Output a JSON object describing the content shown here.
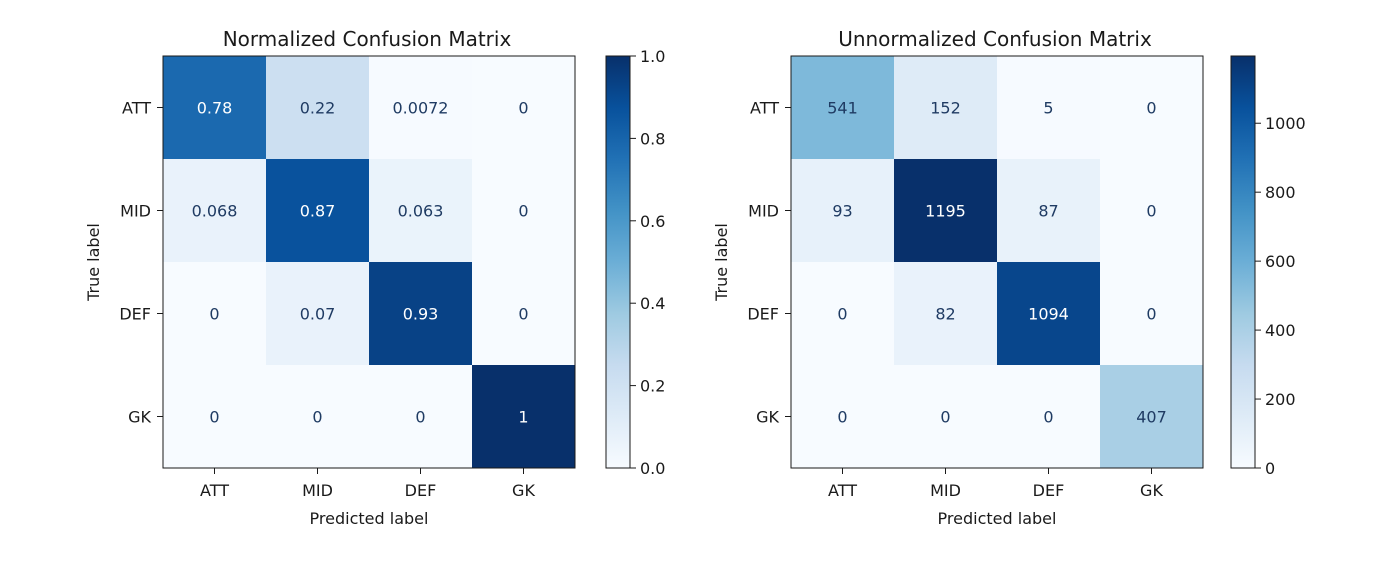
{
  "chart_data": [
    {
      "type": "heatmap",
      "title": "Normalized Confusion Matrix",
      "xlabel": "Predicted label",
      "ylabel": "True label",
      "x_categories": [
        "ATT",
        "MID",
        "DEF",
        "GK"
      ],
      "y_categories": [
        "ATT",
        "MID",
        "DEF",
        "GK"
      ],
      "values": [
        [
          0.78,
          0.22,
          0.0072,
          0
        ],
        [
          0.068,
          0.87,
          0.063,
          0
        ],
        [
          0,
          0.07,
          0.93,
          0
        ],
        [
          0,
          0,
          0,
          1
        ]
      ],
      "colormap": "Blues",
      "vmin": 0,
      "vmax": 1.0,
      "colorbar_ticks": [
        "0.0",
        "0.2",
        "0.4",
        "0.6",
        "0.8",
        "1.0"
      ]
    },
    {
      "type": "heatmap",
      "title": "Unnormalized Confusion Matrix",
      "xlabel": "Predicted label",
      "ylabel": "True label",
      "x_categories": [
        "ATT",
        "MID",
        "DEF",
        "GK"
      ],
      "y_categories": [
        "ATT",
        "MID",
        "DEF",
        "GK"
      ],
      "values": [
        [
          541,
          152,
          5,
          0
        ],
        [
          93,
          1195,
          87,
          0
        ],
        [
          0,
          82,
          1094,
          0
        ],
        [
          0,
          0,
          0,
          407
        ]
      ],
      "colormap": "Blues",
      "vmin": 0,
      "vmax": 1195,
      "colorbar_ticks": [
        "0",
        "200",
        "400",
        "600",
        "800",
        "1000"
      ]
    }
  ]
}
